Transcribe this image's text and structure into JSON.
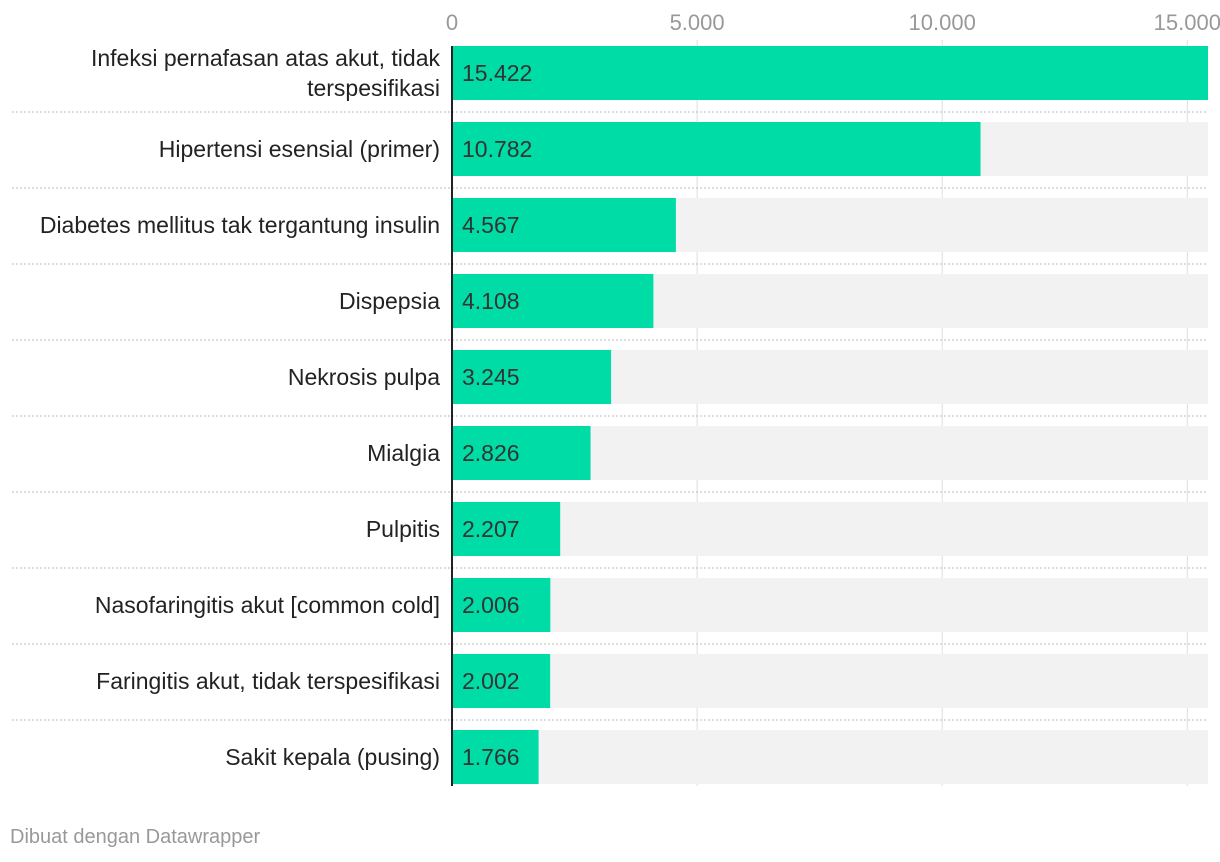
{
  "chart_data": {
    "type": "bar",
    "orientation": "horizontal",
    "categories": [
      [
        "Infeksi pernafasan atas akut, tidak",
        "terspesifikasi"
      ],
      [
        "Hipertensi esensial (primer)"
      ],
      [
        "Diabetes mellitus tak tergantung insulin"
      ],
      [
        "Dispepsia"
      ],
      [
        "Nekrosis pulpa"
      ],
      [
        "Mialgia"
      ],
      [
        "Pulpitis"
      ],
      [
        "Nasofaringitis akut [common cold]"
      ],
      [
        "Faringitis akut, tidak terspesifikasi"
      ],
      [
        "Sakit kepala (pusing)"
      ]
    ],
    "values": [
      15422,
      10782,
      4567,
      4108,
      3245,
      2826,
      2207,
      2006,
      2002,
      1766
    ],
    "value_labels": [
      "15.422",
      "10.782",
      "4.567",
      "4.108",
      "3.245",
      "2.826",
      "2.207",
      "2.006",
      "2.002",
      "1.766"
    ],
    "xlim": [
      0,
      15422
    ],
    "ticks": [
      0,
      5000,
      10000,
      15000
    ],
    "tick_labels": [
      "0",
      "5.000",
      "10.000",
      "15.000"
    ],
    "axis_position": "top",
    "grid": true,
    "colors": {
      "bar": "#00dca6",
      "track": "#f2f2f2",
      "grid": "#dddddd",
      "axis": "#222222"
    }
  },
  "footer": {
    "credit": "Dibuat dengan Datawrapper"
  }
}
